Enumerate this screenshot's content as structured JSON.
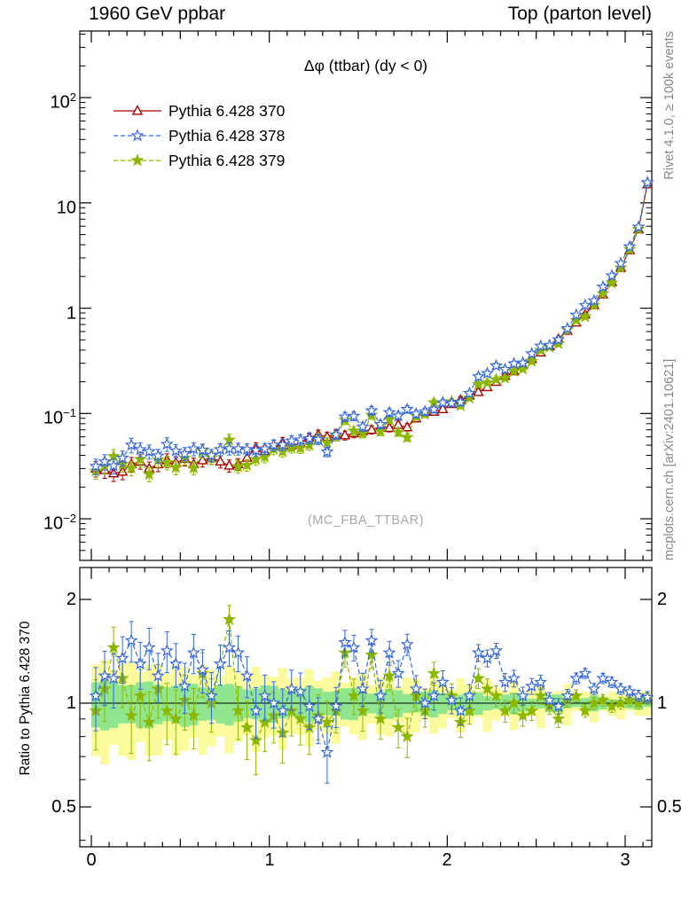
{
  "header": {
    "left_title": "1960 GeV ppbar",
    "right_title": "Top (parton level)"
  },
  "labels": {
    "plot_title": "Δφ (ttbar) (dy < 0)",
    "watermark": "(MC_FBA_TTBAR)",
    "rivet": "Rivet 4.1.0, ≥ 100k events",
    "mcplots": "mcplots.cern.ch [arXiv:2401.10621]",
    "ratio_axis": "Ratio to Pythia 6.428 370"
  },
  "legend": {
    "items": [
      {
        "label": "Pythia 6.428 370"
      },
      {
        "label": "Pythia 6.428 378"
      },
      {
        "label": "Pythia 6.428 379"
      }
    ]
  },
  "axes": {
    "x_ticks": [
      "0",
      "1",
      "2",
      "3"
    ],
    "y_main": [
      {
        "base": "10",
        "exp": "2"
      },
      {
        "base": "10",
        "exp": ""
      },
      {
        "base": "1",
        "exp": ""
      },
      {
        "base": "10",
        "exp": "−1"
      },
      {
        "base": "10",
        "exp": "−2"
      }
    ],
    "y_ratio": [
      "2",
      "1",
      "0.5"
    ]
  },
  "colors": {
    "s370": "#aa0000",
    "s378": "#3366dd",
    "s379": "#8db600",
    "band_yellow": "#fbfb9e",
    "band_green": "#8fe68f",
    "frame": "#000000",
    "watermark": "#a8a8a8",
    "side_text": "#888888"
  },
  "chart_data": {
    "type": "line",
    "title": "Δφ (ttbar) (dy < 0)",
    "xlabel": "Δφ (ttbar)",
    "bin_width": 0.05,
    "x_range_shown": [
      -0.065,
      3.15
    ],
    "y_range_main": [
      0.004,
      430
    ],
    "y_range_ratio": [
      0.38,
      2.48
    ],
    "x": [
      0.025,
      0.075,
      0.125,
      0.175,
      0.225,
      0.275,
      0.325,
      0.375,
      0.425,
      0.475,
      0.525,
      0.575,
      0.625,
      0.675,
      0.725,
      0.775,
      0.825,
      0.875,
      0.925,
      0.975,
      1.025,
      1.075,
      1.125,
      1.175,
      1.225,
      1.275,
      1.325,
      1.375,
      1.425,
      1.475,
      1.525,
      1.575,
      1.625,
      1.675,
      1.725,
      1.775,
      1.825,
      1.875,
      1.925,
      1.975,
      2.025,
      2.075,
      2.125,
      2.175,
      2.225,
      2.275,
      2.325,
      2.375,
      2.425,
      2.475,
      2.525,
      2.575,
      2.625,
      2.675,
      2.725,
      2.775,
      2.825,
      2.875,
      2.925,
      2.975,
      3.025,
      3.075,
      3.125
    ],
    "series": [
      {
        "name": "Pythia 6.428 370",
        "marker": "open-triangle",
        "line": "solid",
        "values": [
          0.03,
          0.029,
          0.027,
          0.028,
          0.033,
          0.035,
          0.03,
          0.033,
          0.036,
          0.034,
          0.037,
          0.033,
          0.036,
          0.038,
          0.035,
          0.032,
          0.033,
          0.038,
          0.047,
          0.044,
          0.05,
          0.053,
          0.05,
          0.052,
          0.059,
          0.063,
          0.06,
          0.064,
          0.062,
          0.065,
          0.068,
          0.07,
          0.075,
          0.073,
          0.078,
          0.074,
          0.09,
          0.104,
          0.104,
          0.11,
          0.123,
          0.135,
          0.148,
          0.16,
          0.178,
          0.2,
          0.228,
          0.252,
          0.288,
          0.33,
          0.38,
          0.436,
          0.512,
          0.61,
          0.731,
          0.873,
          1.07,
          1.35,
          1.77,
          2.42,
          3.55,
          5.62,
          15.0
        ]
      },
      {
        "name": "Pythia 6.428 378",
        "marker": "open-star",
        "line": "dashed",
        "ratio_to_370": [
          1.05,
          1.2,
          1.18,
          1.35,
          1.52,
          1.3,
          1.45,
          1.2,
          1.42,
          1.3,
          1.12,
          1.4,
          1.25,
          1.05,
          1.3,
          1.45,
          1.4,
          1.2,
          0.95,
          1.05,
          1.0,
          0.95,
          1.1,
          1.08,
          0.98,
          0.9,
          0.72,
          0.98,
          1.5,
          1.45,
          1.1,
          1.52,
          1.05,
          1.4,
          1.22,
          1.48,
          1.1,
          1.0,
          1.05,
          1.15,
          1.02,
          0.95,
          1.05,
          1.4,
          1.35,
          1.42,
          1.15,
          1.18,
          1.05,
          1.12,
          1.15,
          1.02,
          0.98,
          1.05,
          1.18,
          1.22,
          1.1,
          1.18,
          1.15,
          1.1,
          1.08,
          1.05,
          1.04
        ]
      },
      {
        "name": "Pythia 6.428 379",
        "marker": "star",
        "line": "dashed",
        "ratio_to_370": [
          0.95,
          1.1,
          1.45,
          1.18,
          0.92,
          1.05,
          0.88,
          1.1,
          0.95,
          0.9,
          1.02,
          0.92,
          1.22,
          1.0,
          1.3,
          1.75,
          0.95,
          0.85,
          0.78,
          0.88,
          0.92,
          0.82,
          0.95,
          0.9,
          0.85,
          0.92,
          0.88,
          0.95,
          1.4,
          1.05,
          0.95,
          1.38,
          0.9,
          1.2,
          0.85,
          0.8,
          1.05,
          0.95,
          1.22,
          1.15,
          1.05,
          0.88,
          0.95,
          1.18,
          1.1,
          1.05,
          0.95,
          1.0,
          0.92,
          0.95,
          1.05,
          0.98,
          0.9,
          1.02,
          1.05,
          0.95,
          1.0,
          1.02,
          0.98,
          1.0,
          1.02,
          1.0,
          1.03
        ]
      }
    ],
    "errors": {
      "main": {
        "a": 0.17,
        "b": 0.05,
        "min": 0.03
      },
      "ratio": {
        "a": 0.22,
        "b": 0.065,
        "min": 0.04
      }
    },
    "bands": [
      {
        "color_key": "band_yellow",
        "base": 0.3,
        "slope": 0.078,
        "jitter": 0.05,
        "freq": 2.17,
        "min": 0.05
      },
      {
        "color_key": "band_green",
        "base": 0.15,
        "slope": 0.041,
        "jitter": 0.02,
        "freq": 1.37,
        "min": 0.025
      }
    ],
    "reference_line": 1,
    "legend_position": "top-left",
    "grid": false
  }
}
